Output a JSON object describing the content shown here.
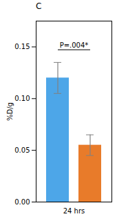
{
  "chart_data": {
    "type": "bar",
    "title": "C",
    "categories": [
      "24 hrs"
    ],
    "series": [
      {
        "color": "#4da6e8",
        "values": [
          0.12
        ],
        "errors": [
          0.015
        ]
      },
      {
        "color": "#e87b2a",
        "values": [
          0.055
        ],
        "errors": [
          0.01
        ]
      }
    ],
    "ylabel": "%D/g",
    "ylim": [
      0.0,
      0.175
    ],
    "yticks": [
      {
        "value": 0,
        "label": "0.00"
      },
      0.05,
      {
        "value": 0.1,
        "label": "0.10"
      },
      0.15
    ],
    "annotations": [
      {
        "text": "P=.004*"
      }
    ],
    "grid": false
  }
}
